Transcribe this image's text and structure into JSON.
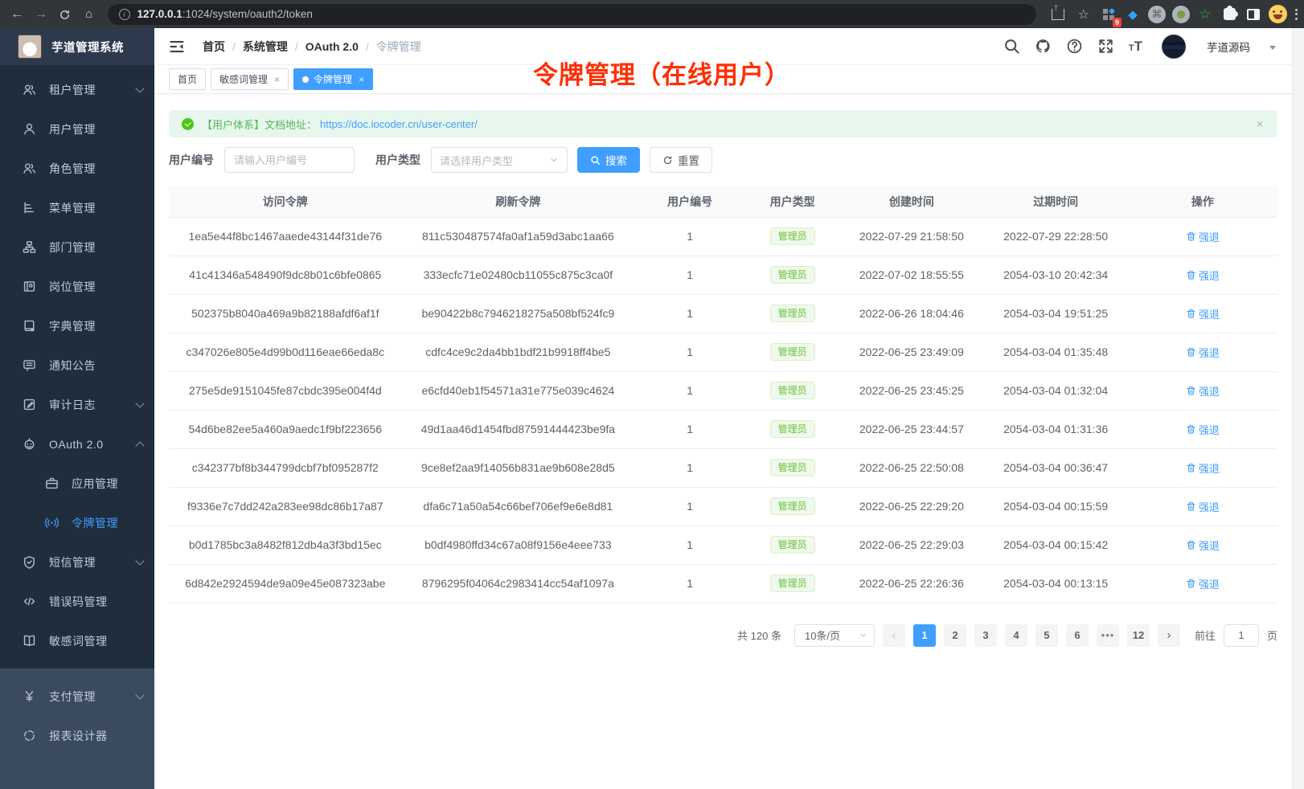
{
  "browser": {
    "url_host": "127.0.0.1",
    "url_rest": ":1024/system/oauth2/token",
    "extension_badge": "9"
  },
  "header": {
    "logo_title": "芋道管理系统",
    "breadcrumb": [
      "首页",
      "系统管理",
      "OAuth 2.0",
      "令牌管理"
    ],
    "username": "芋道源码"
  },
  "annotation": {
    "text": "令牌管理（在线用户）",
    "color": "#ff2e02"
  },
  "tabs": [
    {
      "label": "首页",
      "closable": false,
      "active": false
    },
    {
      "label": "敏感词管理",
      "closable": true,
      "active": false
    },
    {
      "label": "令牌管理",
      "closable": true,
      "active": true
    }
  ],
  "sidebar": {
    "items": [
      {
        "label": "租户管理",
        "icon": "users-icon",
        "arrow": "down"
      },
      {
        "label": "用户管理",
        "icon": "user-icon"
      },
      {
        "label": "角色管理",
        "icon": "users-icon"
      },
      {
        "label": "菜单管理",
        "icon": "menu-tree-icon"
      },
      {
        "label": "部门管理",
        "icon": "org-icon"
      },
      {
        "label": "岗位管理",
        "icon": "badge-icon"
      },
      {
        "label": "字典管理",
        "icon": "dict-icon"
      },
      {
        "label": "通知公告",
        "icon": "notice-icon"
      },
      {
        "label": "审计日志",
        "icon": "audit-icon",
        "arrow": "down"
      },
      {
        "label": "OAuth 2.0",
        "icon": "oauth-icon",
        "arrow": "up",
        "children": [
          {
            "label": "应用管理",
            "icon": "app-icon"
          },
          {
            "label": "令牌管理",
            "icon": "token-icon",
            "active": true
          }
        ]
      },
      {
        "label": "短信管理",
        "icon": "sms-icon",
        "arrow": "down"
      },
      {
        "label": "错误码管理",
        "icon": "errcode-icon"
      },
      {
        "label": "敏感词管理",
        "icon": "sensitive-icon"
      }
    ],
    "bottom_items": [
      {
        "label": "支付管理",
        "icon": "pay-icon",
        "arrow": "down"
      },
      {
        "label": "报表设计器",
        "icon": "report-icon"
      }
    ]
  },
  "alert": {
    "text": "【用户体系】文档地址：",
    "link": "https://doc.iocoder.cn/user-center/"
  },
  "filters": {
    "user_id_label": "用户编号",
    "user_id_placeholder": "请输入用户编号",
    "user_type_label": "用户类型",
    "user_type_placeholder": "请选择用户类型",
    "search_label": "搜索",
    "reset_label": "重置"
  },
  "table": {
    "columns": [
      "访问令牌",
      "刷新令牌",
      "用户编号",
      "用户类型",
      "创建时间",
      "过期时间",
      "操作"
    ],
    "user_type_tag": "管理员",
    "action_label": "强退",
    "rows": [
      {
        "access": "1ea5e44f8bc1467aaede43144f31de76",
        "refresh": "811c530487574fa0af1a59d3abc1aa66",
        "uid": "1",
        "created": "2022-07-29 21:58:50",
        "expires": "2022-07-29 22:28:50"
      },
      {
        "access": "41c41346a548490f9dc8b01c6bfe0865",
        "refresh": "333ecfc71e02480cb11055c875c3ca0f",
        "uid": "1",
        "created": "2022-07-02 18:55:55",
        "expires": "2054-03-10 20:42:34"
      },
      {
        "access": "502375b8040a469a9b82188afdf6af1f",
        "refresh": "be90422b8c7946218275a508bf524fc9",
        "uid": "1",
        "created": "2022-06-26 18:04:46",
        "expires": "2054-03-04 19:51:25"
      },
      {
        "access": "c347026e805e4d99b0d116eae66eda8c",
        "refresh": "cdfc4ce9c2da4bb1bdf21b9918ff4be5",
        "uid": "1",
        "created": "2022-06-25 23:49:09",
        "expires": "2054-03-04 01:35:48"
      },
      {
        "access": "275e5de9151045fe87cbdc395e004f4d",
        "refresh": "e6cfd40eb1f54571a31e775e039c4624",
        "uid": "1",
        "created": "2022-06-25 23:45:25",
        "expires": "2054-03-04 01:32:04"
      },
      {
        "access": "54d6be82ee5a460a9aedc1f9bf223656",
        "refresh": "49d1aa46d1454fbd87591444423be9fa",
        "uid": "1",
        "created": "2022-06-25 23:44:57",
        "expires": "2054-03-04 01:31:36"
      },
      {
        "access": "c342377bf8b344799dcbf7bf095287f2",
        "refresh": "9ce8ef2aa9f14056b831ae9b608e28d5",
        "uid": "1",
        "created": "2022-06-25 22:50:08",
        "expires": "2054-03-04 00:36:47"
      },
      {
        "access": "f9336e7c7dd242a283ee98dc86b17a87",
        "refresh": "dfa6c71a50a54c66bef706ef9e6e8d81",
        "uid": "1",
        "created": "2022-06-25 22:29:20",
        "expires": "2054-03-04 00:15:59"
      },
      {
        "access": "b0d1785bc3a8482f812db4a3f3bd15ec",
        "refresh": "b0df4980ffd34c67a08f9156e4eee733",
        "uid": "1",
        "created": "2022-06-25 22:29:03",
        "expires": "2054-03-04 00:15:42"
      },
      {
        "access": "6d842e2924594de9a09e45e087323abe",
        "refresh": "8796295f04064c2983414cc54af1097a",
        "uid": "1",
        "created": "2022-06-25 22:26:36",
        "expires": "2054-03-04 00:13:15"
      }
    ]
  },
  "pagination": {
    "total": "共 120 条",
    "page_size": "10条/页",
    "pages": [
      "1",
      "2",
      "3",
      "4",
      "5",
      "6",
      "•••",
      "12"
    ],
    "active": "1",
    "goto": "前往",
    "unit": "页",
    "goto_value": "1"
  },
  "colors": {
    "accent": "#409eff",
    "success": "#67c23a",
    "tag_bg": "#f0f9eb",
    "sidebar_bg": "#1f2d3d",
    "annotation": "#ff2e02"
  }
}
